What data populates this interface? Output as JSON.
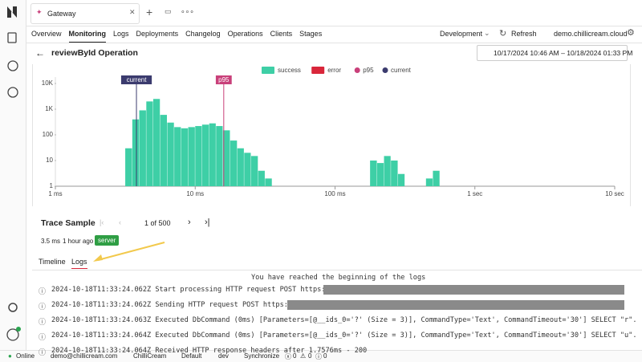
{
  "app": {
    "tab": "Gateway",
    "nav": [
      "Overview",
      "Monitoring",
      "Logs",
      "Deployments",
      "Changelog",
      "Operations",
      "Clients",
      "Stages"
    ],
    "environment": "Development",
    "refresh": "Refresh",
    "host": "demo.chillicream.cloud"
  },
  "page": {
    "title": "reviewById Operation",
    "date_range": "10/17/2024 10:46 AM – 10/18/2024 01:33 PM"
  },
  "chart_data": {
    "type": "histogram",
    "log_x": true,
    "log_y": true,
    "color": "#3ecfa6",
    "bins": [
      3.16,
      3.55,
      3.98,
      4.47,
      5.01,
      5.62,
      6.31,
      7.08,
      7.94,
      8.91,
      10,
      11.2,
      12.6,
      14.1,
      15.8,
      17.8,
      20,
      22.4,
      25.1,
      28.2,
      31.6,
      35.5,
      39.8,
      44.7,
      50.1,
      56.2,
      63.1,
      70.8,
      79.4,
      89.1,
      100,
      112,
      126,
      141,
      158,
      178,
      200,
      224,
      251,
      282,
      316,
      355,
      398,
      447,
      501,
      562,
      631,
      708,
      794,
      891,
      1000,
      1122,
      1259,
      1413,
      1585,
      1778,
      1995,
      2239,
      2512
    ],
    "values": [
      30,
      400,
      900,
      2000,
      2500,
      600,
      300,
      200,
      180,
      200,
      220,
      250,
      280,
      220,
      150,
      60,
      30,
      20,
      15,
      4,
      2,
      1,
      0,
      1,
      1,
      1,
      0,
      1,
      1,
      0,
      0,
      0,
      0,
      0,
      0,
      10,
      8,
      15,
      10,
      3,
      0,
      0,
      0,
      2,
      4,
      0,
      0,
      1,
      0,
      0,
      0,
      0,
      0,
      0,
      0,
      0,
      0,
      1
    ],
    "legend": [
      {
        "name": "success",
        "color": "#3ecfa6",
        "shape": "rect"
      },
      {
        "name": "error",
        "color": "#d9263a",
        "shape": "rect"
      },
      {
        "name": "p95",
        "color": "#c9407a",
        "shape": "dot"
      },
      {
        "name": "current",
        "color": "#3b3b6e",
        "shape": "dot"
      }
    ],
    "markers": [
      {
        "label": "current",
        "value": 3.8,
        "color": "#3b3b6e"
      },
      {
        "label": "p95",
        "value": 16,
        "color": "#c9407a"
      }
    ],
    "xlim": [
      1,
      10000
    ],
    "ylim": [
      1,
      10000
    ],
    "xticks": [
      {
        "value": 1,
        "label": "1 ms"
      },
      {
        "value": 10,
        "label": "10 ms"
      },
      {
        "value": 100,
        "label": "100 ms"
      },
      {
        "value": 1000,
        "label": "1 sec"
      },
      {
        "value": 10000,
        "label": "10 sec"
      }
    ],
    "yticks": [
      1,
      10,
      100,
      {
        "value": 1000,
        "label": "1K"
      },
      {
        "value": 10000,
        "label": "10K"
      }
    ]
  },
  "trace": {
    "title": "Trace Sample",
    "pager": "1 of 500",
    "duration": "3.5 ms",
    "time": "1 hour ago",
    "badge": "server",
    "tabs": [
      "Timeline",
      "Logs"
    ]
  },
  "logs": {
    "header": "You have reached the beginning of the logs",
    "lines": [
      "2024-10-18T11:33:24.062Z  Start processing HTTP request POST https://",
      "2024-10-18T11:33:24.062Z  Sending HTTP request POST https://",
      "2024-10-18T11:33:24.063Z  Executed DbCommand (0ms) [Parameters=[@__ids_0='?' (Size = 3)], CommandType='Text', CommandTimeout='30'] SELECT \"r\".\"Id\"",
      "2024-10-18T11:33:24.064Z  Executed DbCommand (0ms) [Parameters=[@__ids_0='?' (Size = 3)], CommandType='Text', CommandTimeout='30'] SELECT \"u\".\"Id\"",
      "2024-10-18T11:33:24.064Z  Received HTTP response headers after 1.7576ms - 200"
    ]
  },
  "status": {
    "online": "Online",
    "user": "demo@chillicream.com",
    "org": "ChilliCream",
    "branch": "Default",
    "env": "dev",
    "sync": "Synchronize",
    "errors": "0",
    "warnings": "0",
    "info": "0"
  }
}
